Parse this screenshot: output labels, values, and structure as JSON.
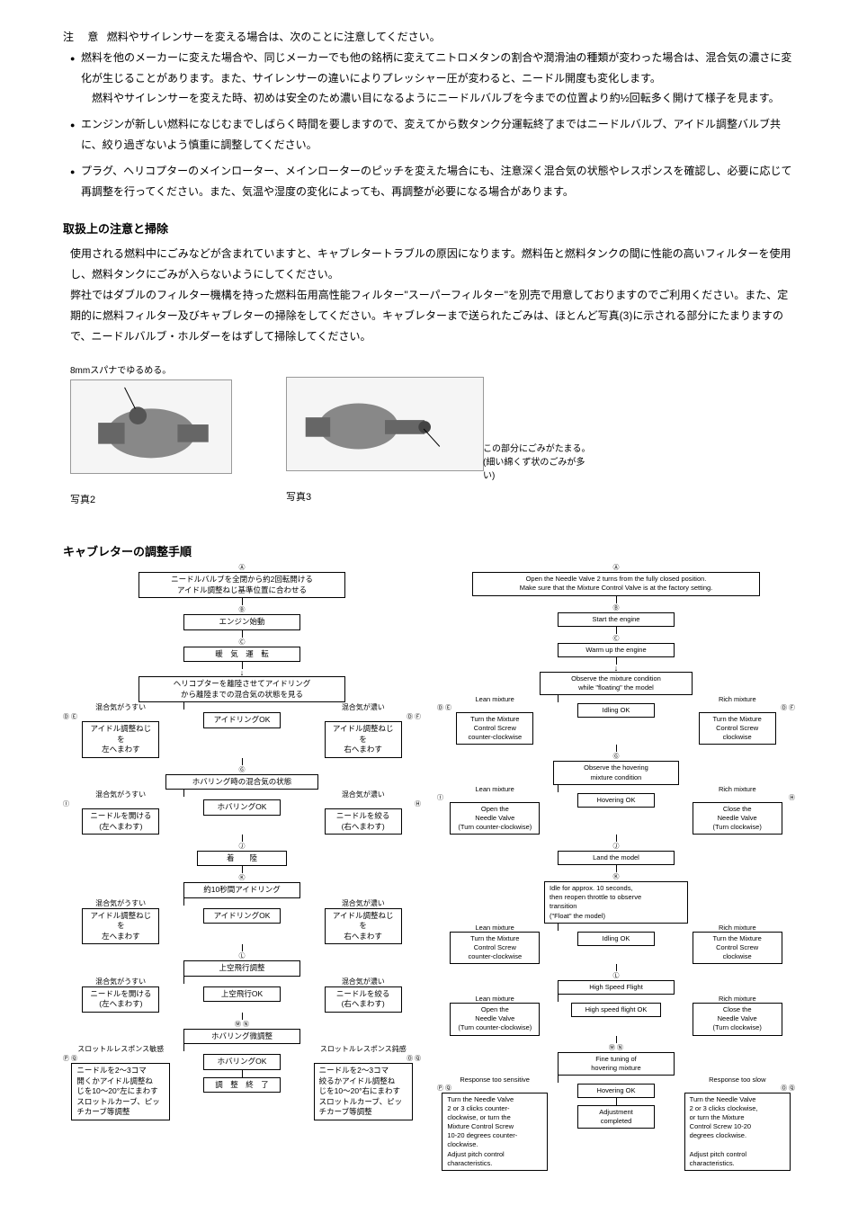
{
  "caution": {
    "label": "注 意",
    "head": "燃料やサイレンサーを変える場合は、次のことに注意してください。",
    "bullets": [
      "燃料を他のメーカーに変えた場合や、同じメーカーでも他の銘柄に変えてニトロメタンの割合や潤滑油の種類が変わった場合は、混合気の濃さに変化が生じることがあります。また、サイレンサーの違いによりプレッシャー圧が変わると、ニードル開度も変化します。",
      "エンジンが新しい燃料になじむまでしばらく時間を要しますので、変えてから数タンク分運転終了まではニードルバルブ、アイドル調整バルブ共に、絞り過ぎないよう慎重に調整してください。",
      "プラグ、ヘリコプターのメインローター、メインローターのピッチを変えた場合にも、注意深く混合気の状態やレスポンスを確認し、必要に応じて再調整を行ってください。また、気温や湿度の変化によっても、再調整が必要になる場合があります。"
    ],
    "sub_para": "燃料やサイレンサーを変えた時、初めは安全のため濃い目になるようにニードルバルブを今までの位置より約½回転多く開けて様子を見ます。"
  },
  "handling": {
    "title": "取扱上の注意と掃除",
    "para1": "使用される燃料中にごみなどが含まれていますと、キャブレタートラブルの原因になります。燃料缶と燃料タンクの間に性能の高いフィルターを使用し、燃料タンクにごみが入らないようにしてください。",
    "para2": "弊社ではダブルのフィルター機構を持った燃料缶用高性能フィルター\"スーパーフィルター\"を別売で用意しておりますのでご利用ください。また、定期的に燃料フィルター及びキャブレターの掃除をしてください。キャブレターまで送られたごみは、ほとんど写真(3)に示される部分にたまりますので、ニードルバルブ・ホルダーをはずして掃除してください。"
  },
  "photos": {
    "p2_top": "8mmスパナでゆるめる。",
    "p2_cap": "写真2",
    "p3_side1": "この部分にごみがたまる。",
    "p3_side2": "(細い綿くず状のごみが多い)",
    "p3_cap": "写真3"
  },
  "flow_title": "キャブレターの調整手順",
  "jp": {
    "mA": "Ⓐ",
    "a": "ニードルバルブを全閉から約2回転開ける\nアイドル調整ねじ基準位置に合わせる",
    "mB": "Ⓑ",
    "b": "エンジン始動",
    "mC": "Ⓒ",
    "c": "暖　気　運　転",
    "d": "ヘリコプターを離陸させてアイドリング\nから離陸までの混合気の状態を見る",
    "lean": "混合気がうすい",
    "rich": "混合気が濃い",
    "mDE": "Ⓓ Ⓔ",
    "de_l": "アイドル調整ねじを\n左へまわす",
    "mDF": "Ⓓ Ⓕ",
    "de_r": "アイドル調整ねじを\n右へまわす",
    "idleok": "アイドリングOK",
    "mG": "Ⓖ",
    "g": "ホバリング時の混合気の状態",
    "mI": "Ⓘ",
    "i_l": "ニードルを開ける\n(左へまわす)",
    "mH": "Ⓗ",
    "i_r": "ニードルを絞る\n(右へまわす)",
    "hovok": "ホバリングOK",
    "mJ": "Ⓙ",
    "j": "着　　陸",
    "mK": "Ⓚ",
    "k": "約10秒間アイドリング",
    "k_l": "アイドル調整ねじを\n左へまわす",
    "k_r": "アイドル調整ねじを\n右へまわす",
    "mL": "Ⓛ",
    "l": "上空飛行調整",
    "l_l": "ニードルを開ける\n(左へまわす)",
    "l_r": "ニードルを絞る\n(右へまわす)",
    "flyok": "上空飛行OK",
    "mMN": "Ⓜ Ⓝ",
    "mn": "ホバリング微調整",
    "resp_s": "スロットルレスポンス敏感",
    "resp_d": "スロットルレスポンス鈍感",
    "mPQ": "Ⓟ Ⓠ",
    "pq_l": "ニードルを2〜3コマ\n開くかアイドル調整ね\nじを10〜20°左にまわす\nスロットルカーブ、ピッ\nチカーブ等調整",
    "mOQ": "Ⓞ Ⓠ",
    "pq_r": "ニードルを2〜3コマ\n絞るかアイドル調整ね\nじを10〜20°右にまわす\nスロットルカーブ、ピッ\nチカーブ等調整",
    "done": "調　整　終　了"
  },
  "en": {
    "mA": "Ⓐ",
    "a": "Open the Needle Valve   2 turns from the fully closed position.\nMake sure that the Mixture Control Valve is at the factory setting.",
    "mB": "Ⓑ",
    "b": "Start the engine",
    "mC": "Ⓒ",
    "c": "Warm up the engine",
    "d": "Observe the mixture condition\nwhile \"floating\" the model",
    "lean": "Lean mixture",
    "rich": "Rich mixture",
    "mDE": "Ⓓ Ⓔ",
    "de_l": "Turn the Mixture\nControl Screw\ncounter-clockwise",
    "mDF": "Ⓓ Ⓕ",
    "de_r": "Turn the Mixture\nControl Screw\nclockwise",
    "idleok": "Idling OK",
    "mG": "Ⓖ",
    "g": "Observe the hovering\nmixture condition",
    "mI": "Ⓘ",
    "i_l": "Open the\nNeedle Valve\n(Turn counter-clockwise)",
    "mH": "Ⓗ",
    "i_r": "Close the\nNeedle Valve\n(Turn clockwise)",
    "hovok": "Hovering OK",
    "mJ": "Ⓙ",
    "j": "Land the model",
    "mK": "Ⓚ",
    "k": "Idle for approx. 10 seconds,\nthen reopen throttle to observe\ntransition\n(\"Float\" the model)",
    "k_l": "Turn the Mixture\nControl Screw\ncounter-clockwise",
    "k_r": "Turn the Mixture\nControl Screw\nclockwise",
    "mL": "Ⓛ",
    "l": "High Speed Flight",
    "l_l": "Open the\nNeedle Valve\n(Turn counter-clockwise)",
    "l_r": "Close the\nNeedle Valve\n(Turn clockwise)",
    "flyok": "High speed flight OK",
    "mMN": "Ⓜ Ⓝ",
    "mn": "Fine tuning of\nhovering mixture",
    "resp_s": "Response too sensitive",
    "resp_d": "Response too slow",
    "mPQ": "Ⓟ Ⓠ",
    "pq_l": "Turn the Needle Valve\n2 or 3 clicks counter-\nclockwise, or turn the\nMixture Control Screw\n10-20 degrees counter-\nclockwise.\nAdjust pitch control\ncharacteristics.",
    "mOQ": "Ⓞ Ⓠ",
    "pq_r": "Turn the Needle Valve\n2 or 3 clicks clockwise,\nor turn the Mixture\nControl Screw 10-20\ndegrees clockwise.\n\nAdjust pitch control\ncharacteristics.",
    "done": "Adjustment\ncompleted"
  }
}
